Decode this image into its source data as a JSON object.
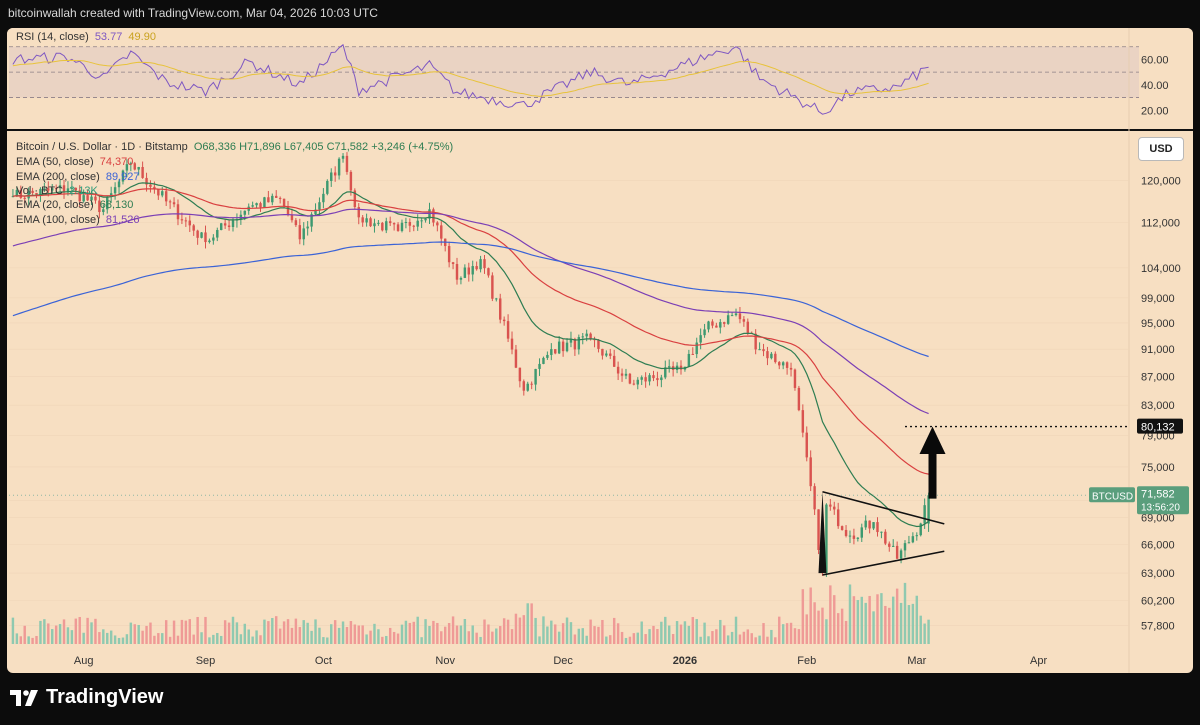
{
  "header": {
    "text": "bitcoinwallah created with TradingView.com, Mar 04, 2026 10:03 UTC"
  },
  "brand": {
    "name": "TradingView"
  },
  "currency_label": "USD",
  "rsi_legend": {
    "label": "RSI (14, close)",
    "value1": "53.77",
    "value2": "49.90"
  },
  "main_legend": {
    "title": "Bitcoin / U.S. Dollar · 1D · Bitstamp",
    "ohlc": "O68,336 H71,896 L67,405 C71,582 +3,246 (+4.75%)",
    "lines": [
      {
        "label": "EMA (50, close)",
        "value": "74,370"
      },
      {
        "label": "EMA (200, close)",
        "value": "89,927"
      },
      {
        "label": "Vol · BTC",
        "value": "2.13K"
      },
      {
        "label": "EMA (20, close)",
        "value": "68,130"
      },
      {
        "label": "EMA (100, close)",
        "value": "81,526"
      }
    ]
  },
  "colors": {
    "up": "#3d9970",
    "down": "#d9534f",
    "vol_up": "#8fc9b0",
    "vol_down": "#ef9a96",
    "rsi": "#7e57c2",
    "rsi_ma": "#e8c33a",
    "ema20": "#2e7d52",
    "ema50": "#d94040",
    "ema100": "#7b3fb5",
    "ema200": "#3b63d6",
    "price_badge": "#5a9e7c",
    "target_badge": "#111111"
  },
  "chart_data": {
    "type": "candlestick",
    "title": "Bitcoin / U.S. Dollar · 1D · Bitstamp",
    "x_ticks": [
      "Aug",
      "Sep",
      "Oct",
      "Nov",
      "Dec",
      "2026",
      "Feb",
      "Mar",
      "Apr"
    ],
    "y_ticks": [
      57800,
      60200,
      63000,
      66000,
      69000,
      71000,
      75000,
      79000,
      83000,
      87000,
      91000,
      95000,
      99000,
      104000,
      112000,
      120000
    ],
    "y_tick_labels": [
      "57,800",
      "60,200",
      "63,000",
      "66,000",
      "69,000",
      "71,000",
      "75,000",
      "79,000",
      "83,000",
      "87,000",
      "91,000",
      "95,000",
      "99,000",
      "104,000",
      "112,000",
      "120,000"
    ],
    "rsi_ticks": [
      20,
      40,
      60
    ],
    "rsi_tick_labels": [
      "20.00",
      "40.00",
      "60.00"
    ],
    "rsi_bands": [
      30,
      70
    ],
    "last_price": {
      "value": 71582,
      "label": "71,582",
      "symbol": "BTCUSD",
      "countdown": "13:56:20"
    },
    "target": {
      "value": 80132,
      "label": "80,132"
    },
    "price_path": [
      [
        "2025-07-14",
        117000
      ],
      [
        "2025-07-28",
        118500
      ],
      [
        "2025-08-06",
        114500
      ],
      [
        "2025-08-13",
        123500
      ],
      [
        "2025-08-22",
        116000
      ],
      [
        "2025-09-01",
        108500
      ],
      [
        "2025-09-12",
        115000
      ],
      [
        "2025-09-20",
        116500
      ],
      [
        "2025-09-25",
        109000
      ],
      [
        "2025-10-06",
        125000
      ],
      [
        "2025-10-10",
        113000
      ],
      [
        "2025-10-20",
        110500
      ],
      [
        "2025-10-28",
        114500
      ],
      [
        "2025-11-04",
        102000
      ],
      [
        "2025-11-10",
        105500
      ],
      [
        "2025-11-21",
        85000
      ],
      [
        "2025-11-28",
        91000
      ],
      [
        "2025-12-08",
        92500
      ],
      [
        "2025-12-18",
        86000
      ],
      [
        "2025-12-31",
        88000
      ],
      [
        "2026-01-06",
        94000
      ],
      [
        "2026-01-14",
        96500
      ],
      [
        "2026-01-20",
        91000
      ],
      [
        "2026-01-28",
        88000
      ],
      [
        "2026-02-05",
        63000
      ],
      [
        "2026-02-06",
        70500
      ],
      [
        "2026-02-12",
        67000
      ],
      [
        "2026-02-18",
        68500
      ],
      [
        "2026-02-24",
        64500
      ],
      [
        "2026-03-02",
        68336
      ],
      [
        "2026-03-04",
        71582
      ]
    ],
    "rsi_path": [
      [
        "2025-07-14",
        60
      ],
      [
        "2025-07-28",
        62
      ],
      [
        "2025-08-06",
        45
      ],
      [
        "2025-08-13",
        65
      ],
      [
        "2025-08-22",
        42
      ],
      [
        "2025-09-01",
        35
      ],
      [
        "2025-09-12",
        58
      ],
      [
        "2025-09-25",
        40
      ],
      [
        "2025-10-06",
        70
      ],
      [
        "2025-10-10",
        36
      ],
      [
        "2025-10-28",
        55
      ],
      [
        "2025-11-04",
        34
      ],
      [
        "2025-11-21",
        24
      ],
      [
        "2025-12-08",
        50
      ],
      [
        "2025-12-18",
        40
      ],
      [
        "2026-01-06",
        62
      ],
      [
        "2026-01-14",
        70
      ],
      [
        "2026-01-20",
        45
      ],
      [
        "2026-02-05",
        18
      ],
      [
        "2026-02-12",
        34
      ],
      [
        "2026-02-24",
        38
      ],
      [
        "2026-03-04",
        53.77
      ]
    ],
    "ema_endpoints": {
      "EMA 20": 68130,
      "EMA 50": 74370,
      "EMA 100": 81526,
      "EMA 200": 89927
    },
    "pattern": "symmetrical triangle / pennant with upward breakout arrow"
  }
}
